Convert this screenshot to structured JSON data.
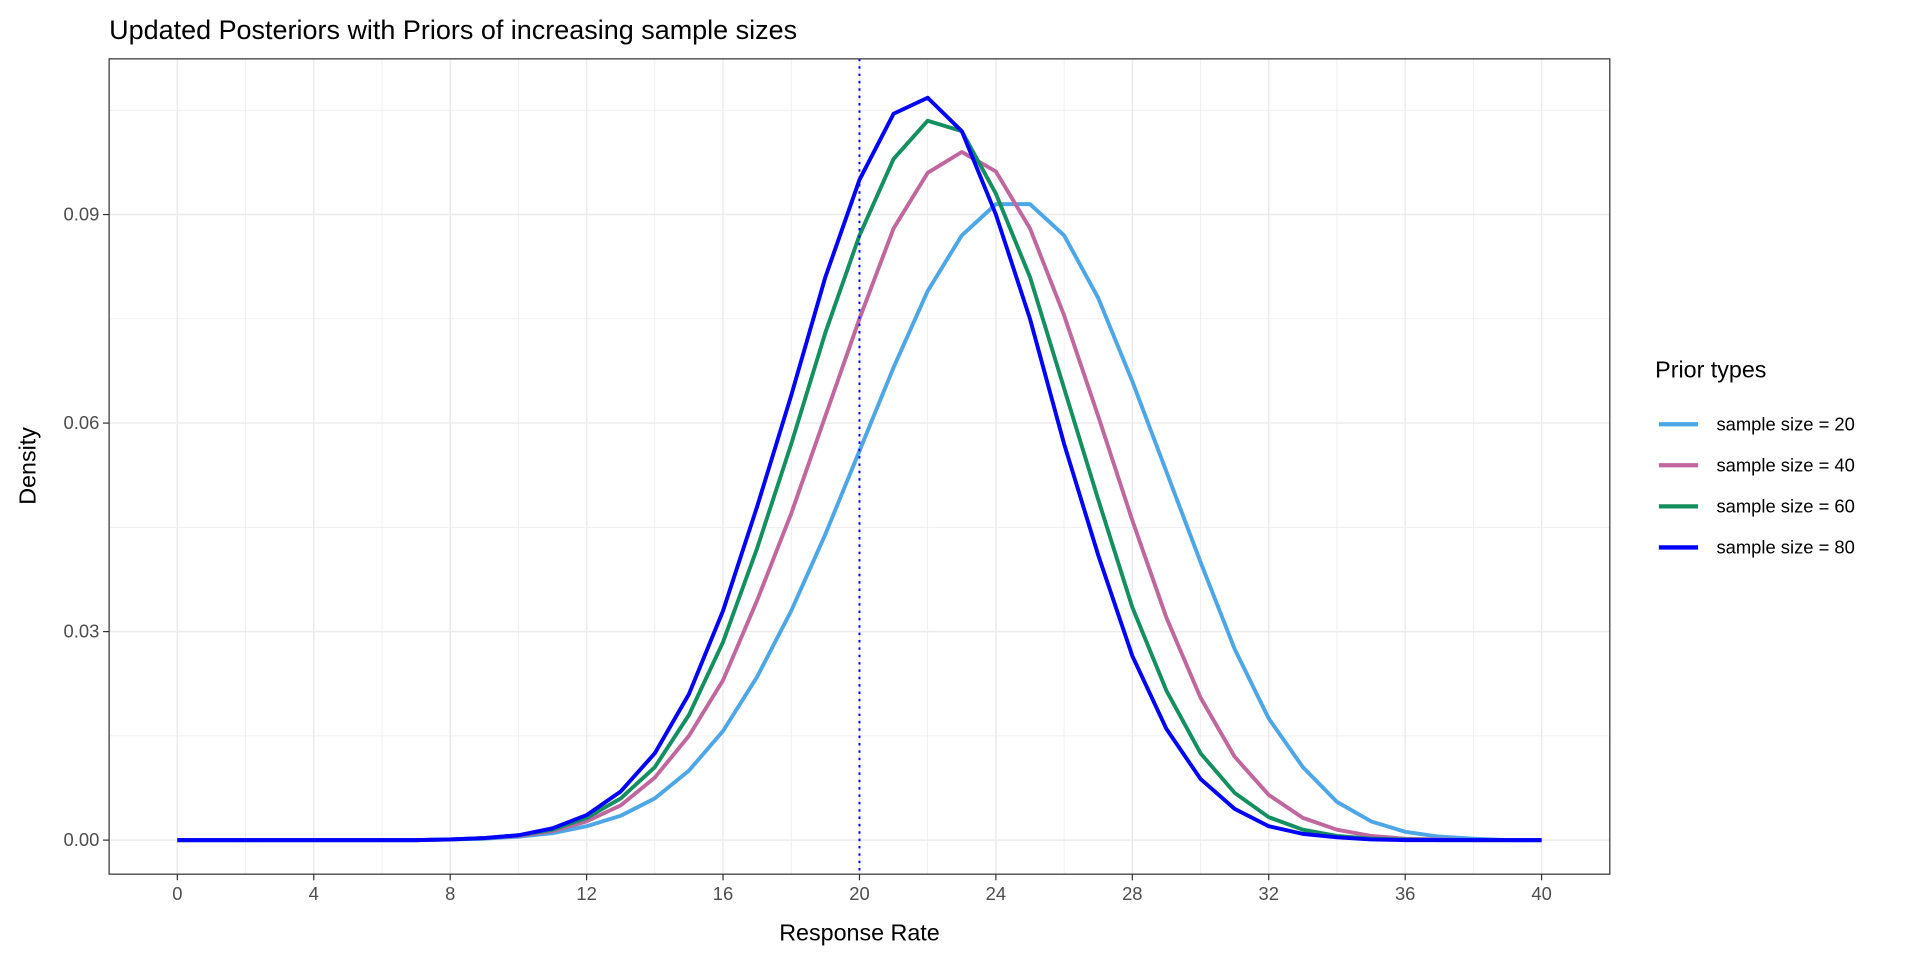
{
  "chart_data": {
    "type": "line",
    "title": "Updated Posteriors with Priors of increasing sample sizes",
    "xlabel": "Response Rate",
    "ylabel": "Density",
    "xlim": [
      -2,
      42
    ],
    "ylim": [
      -0.0049,
      0.1124
    ],
    "x_ticks": [
      0,
      4,
      8,
      12,
      16,
      20,
      24,
      28,
      32,
      36,
      40
    ],
    "x_tick_labels": [
      "0",
      "4",
      "8",
      "12",
      "16",
      "20",
      "24",
      "28",
      "32",
      "36",
      "40"
    ],
    "y_ticks": [
      0,
      0.03,
      0.06,
      0.09
    ],
    "y_tick_labels": [
      "0.00",
      "0.03",
      "0.06",
      "0.09"
    ],
    "grid": true,
    "legend": {
      "title": "Prior types",
      "position": "right"
    },
    "vline": {
      "x": 20,
      "style": "dotted",
      "color": "#0000FF"
    },
    "x": [
      0,
      1,
      2,
      3,
      4,
      5,
      6,
      7,
      8,
      9,
      10,
      11,
      12,
      13,
      14,
      15,
      16,
      17,
      18,
      19,
      20,
      21,
      22,
      23,
      24,
      25,
      26,
      27,
      28,
      29,
      30,
      31,
      32,
      33,
      34,
      35,
      36,
      37,
      38,
      39,
      40
    ],
    "series": [
      {
        "name": "sample size = 20",
        "color": "#4DA6E6",
        "values": [
          0,
          0,
          0,
          0,
          0,
          0,
          0,
          0,
          0.0001,
          0.0002,
          0.0005,
          0.001,
          0.002,
          0.0035,
          0.006,
          0.01,
          0.0157,
          0.0235,
          0.033,
          0.044,
          0.056,
          0.068,
          0.079,
          0.087,
          0.0915,
          0.0915,
          0.087,
          0.078,
          0.066,
          0.053,
          0.04,
          0.0275,
          0.0175,
          0.0105,
          0.0055,
          0.0027,
          0.0012,
          0.0005,
          0.0002,
          0,
          0
        ]
      },
      {
        "name": "sample size = 40",
        "color": "#C0679E",
        "values": [
          0,
          0,
          0,
          0,
          0,
          0,
          0,
          0,
          0.0001,
          0.0003,
          0.0006,
          0.0013,
          0.0027,
          0.005,
          0.009,
          0.015,
          0.023,
          0.0345,
          0.047,
          0.061,
          0.075,
          0.088,
          0.096,
          0.099,
          0.0962,
          0.088,
          0.0755,
          0.061,
          0.046,
          0.032,
          0.0205,
          0.012,
          0.0065,
          0.0032,
          0.0015,
          0.0006,
          0.0002,
          0.0001,
          0,
          0,
          0
        ]
      },
      {
        "name": "sample size = 60",
        "color": "#148F5F",
        "values": [
          0,
          0,
          0,
          0,
          0,
          0,
          0,
          0,
          0.0001,
          0.0003,
          0.0007,
          0.0015,
          0.0032,
          0.006,
          0.0105,
          0.018,
          0.0285,
          0.042,
          0.057,
          0.073,
          0.087,
          0.098,
          0.1035,
          0.102,
          0.093,
          0.081,
          0.065,
          0.049,
          0.0335,
          0.0215,
          0.0125,
          0.0068,
          0.0033,
          0.0015,
          0.0006,
          0.0002,
          0.0001,
          0,
          0,
          0,
          0
        ]
      },
      {
        "name": "sample size = 80",
        "color": "#0000FF",
        "values": [
          0,
          0,
          0,
          0,
          0,
          0,
          0,
          0,
          0.0001,
          0.0003,
          0.0007,
          0.0017,
          0.0036,
          0.007,
          0.0125,
          0.021,
          0.033,
          0.048,
          0.064,
          0.081,
          0.095,
          0.1045,
          0.1068,
          0.102,
          0.09,
          0.075,
          0.057,
          0.041,
          0.0265,
          0.016,
          0.0088,
          0.0045,
          0.002,
          0.0009,
          0.0004,
          0.0001,
          0,
          0,
          0,
          0,
          0
        ]
      }
    ]
  }
}
